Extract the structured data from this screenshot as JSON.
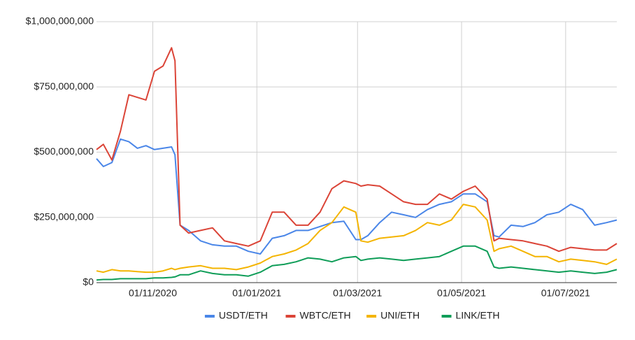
{
  "chart_data": {
    "type": "line",
    "x": [
      "2020-09-29",
      "2020-10-03",
      "2020-10-08",
      "2020-10-13",
      "2020-10-18",
      "2020-10-23",
      "2020-10-28",
      "2020-11-02",
      "2020-11-07",
      "2020-11-12",
      "2020-11-14",
      "2020-11-17",
      "2020-11-22",
      "2020-11-29",
      "2020-12-06",
      "2020-12-13",
      "2020-12-20",
      "2020-12-27",
      "2021-01-03",
      "2021-01-10",
      "2021-01-17",
      "2021-01-24",
      "2021-01-31",
      "2021-02-07",
      "2021-02-14",
      "2021-02-21",
      "2021-02-28",
      "2021-03-03",
      "2021-03-07",
      "2021-03-14",
      "2021-03-21",
      "2021-03-28",
      "2021-04-04",
      "2021-04-11",
      "2021-04-18",
      "2021-04-25",
      "2021-05-02",
      "2021-05-09",
      "2021-05-16",
      "2021-05-20",
      "2021-05-23",
      "2021-05-30",
      "2021-06-06",
      "2021-06-13",
      "2021-06-20",
      "2021-06-27",
      "2021-07-04",
      "2021-07-11",
      "2021-07-18",
      "2021-07-25",
      "2021-07-31"
    ],
    "series": [
      {
        "name": "USDT/ETH",
        "color": "#4a86e8",
        "values": [
          475000000,
          445000000,
          460000000,
          550000000,
          540000000,
          515000000,
          525000000,
          510000000,
          515000000,
          520000000,
          490000000,
          220000000,
          200000000,
          160000000,
          145000000,
          140000000,
          140000000,
          120000000,
          110000000,
          170000000,
          180000000,
          200000000,
          200000000,
          215000000,
          230000000,
          235000000,
          165000000,
          165000000,
          180000000,
          230000000,
          270000000,
          260000000,
          250000000,
          280000000,
          300000000,
          310000000,
          340000000,
          340000000,
          310000000,
          180000000,
          175000000,
          220000000,
          215000000,
          230000000,
          260000000,
          270000000,
          300000000,
          280000000,
          220000000,
          230000000,
          240000000
        ]
      },
      {
        "name": "WBTC/ETH",
        "color": "#db4437",
        "values": [
          510000000,
          530000000,
          470000000,
          580000000,
          720000000,
          710000000,
          700000000,
          810000000,
          830000000,
          900000000,
          850000000,
          220000000,
          190000000,
          200000000,
          210000000,
          160000000,
          150000000,
          140000000,
          160000000,
          270000000,
          270000000,
          220000000,
          220000000,
          270000000,
          360000000,
          390000000,
          380000000,
          370000000,
          375000000,
          370000000,
          340000000,
          310000000,
          300000000,
          300000000,
          340000000,
          320000000,
          350000000,
          370000000,
          320000000,
          160000000,
          170000000,
          165000000,
          160000000,
          150000000,
          140000000,
          120000000,
          135000000,
          130000000,
          125000000,
          125000000,
          150000000
        ]
      },
      {
        "name": "UNI/ETH",
        "color": "#f4b400",
        "values": [
          45000000,
          40000000,
          50000000,
          45000000,
          45000000,
          42000000,
          40000000,
          40000000,
          45000000,
          55000000,
          50000000,
          55000000,
          60000000,
          65000000,
          55000000,
          55000000,
          50000000,
          60000000,
          75000000,
          100000000,
          110000000,
          125000000,
          150000000,
          200000000,
          230000000,
          290000000,
          270000000,
          160000000,
          155000000,
          170000000,
          175000000,
          180000000,
          200000000,
          230000000,
          220000000,
          240000000,
          300000000,
          290000000,
          240000000,
          120000000,
          130000000,
          140000000,
          120000000,
          100000000,
          100000000,
          80000000,
          90000000,
          85000000,
          80000000,
          70000000,
          90000000
        ]
      },
      {
        "name": "LINK/ETH",
        "color": "#0f9d58",
        "values": [
          10000000,
          12000000,
          12000000,
          15000000,
          15000000,
          15000000,
          15000000,
          18000000,
          18000000,
          20000000,
          22000000,
          30000000,
          30000000,
          45000000,
          35000000,
          30000000,
          30000000,
          25000000,
          40000000,
          65000000,
          70000000,
          80000000,
          95000000,
          90000000,
          80000000,
          95000000,
          100000000,
          85000000,
          90000000,
          95000000,
          90000000,
          85000000,
          90000000,
          95000000,
          100000000,
          120000000,
          140000000,
          140000000,
          120000000,
          60000000,
          55000000,
          60000000,
          55000000,
          50000000,
          45000000,
          40000000,
          45000000,
          40000000,
          35000000,
          40000000,
          50000000
        ]
      }
    ],
    "xlim": [
      "2020-09-29",
      "2021-07-31"
    ],
    "xticks": [
      {
        "value": "2020-11-01",
        "label": "01/11/2020"
      },
      {
        "value": "2021-01-01",
        "label": "01/01/2021"
      },
      {
        "value": "2021-03-01",
        "label": "01/03/2021"
      },
      {
        "value": "2021-05-01",
        "label": "01/05/2021"
      },
      {
        "value": "2021-07-01",
        "label": "01/07/2021"
      }
    ],
    "ylim": [
      0,
      1000000000
    ],
    "yticks": [
      {
        "value": 0,
        "label": "$0"
      },
      {
        "value": 250000000,
        "label": "$250,000,000"
      },
      {
        "value": 500000000,
        "label": "$500,000,000"
      },
      {
        "value": 750000000,
        "label": "$750,000,000"
      },
      {
        "value": 1000000000,
        "label": "$1,000,000,000"
      }
    ],
    "grid": true,
    "legend": "bottom"
  }
}
